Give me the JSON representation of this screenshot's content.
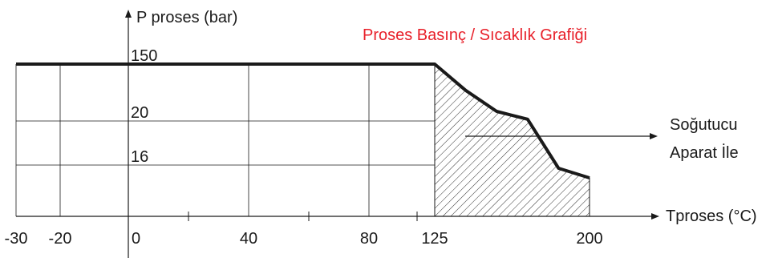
{
  "chart_data": {
    "type": "line",
    "title": "Proses Basınç / Sıcaklık Grafiği",
    "title_color": "#e8202a",
    "ylabel": "P proses (bar)",
    "xlabel": "Tproses (°C)",
    "x_ticks": [
      "-30",
      "-20",
      "0",
      "40",
      "80",
      "125",
      "200"
    ],
    "y_ticks": [
      "150",
      "20",
      "16"
    ],
    "series": [
      {
        "points": [
          {
            "x": -30,
            "y": 150
          },
          {
            "x": 125,
            "y": 150
          },
          {
            "x": 140,
            "y": 90
          },
          {
            "x": 155,
            "y": 42
          },
          {
            "x": 170,
            "y": 24
          },
          {
            "x": 185,
            "y": 15
          },
          {
            "x": 200,
            "y": 12
          }
        ]
      }
    ],
    "hatched_region": {
      "x_from": 125,
      "x_to": 200
    },
    "annotation": {
      "lines": [
        "Soğutucu",
        "Aparat İle"
      ]
    },
    "grid": true,
    "line_color": "#1a1a1a"
  }
}
